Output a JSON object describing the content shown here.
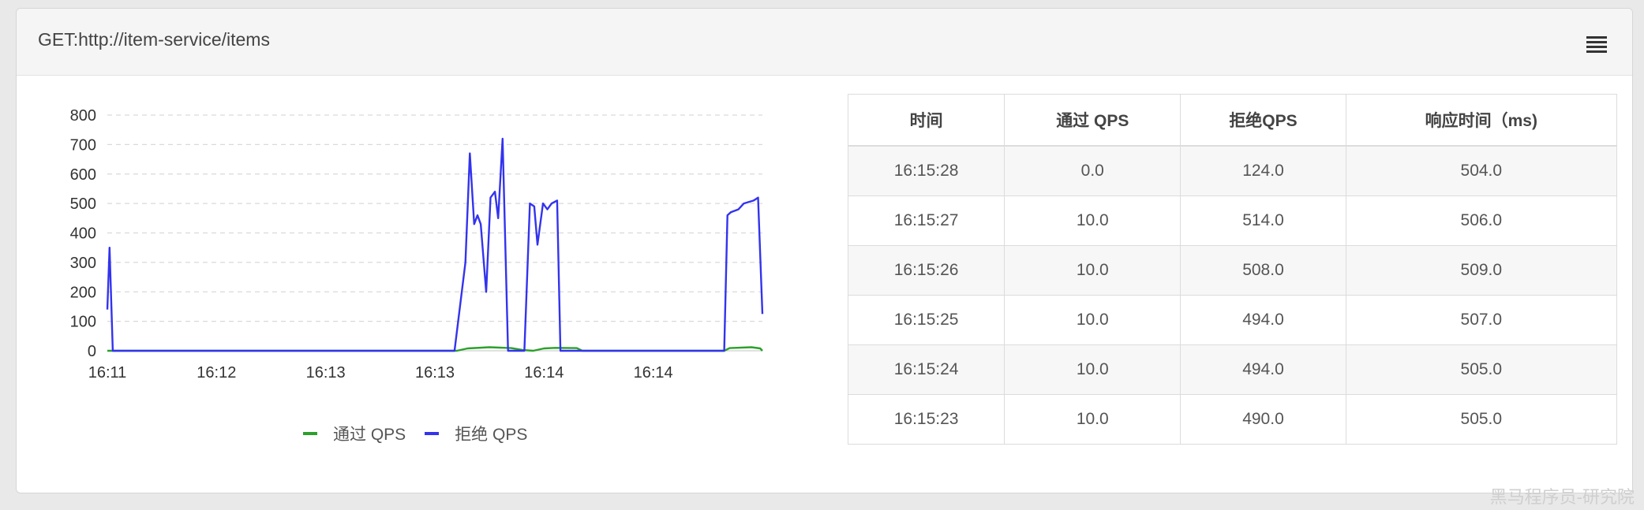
{
  "panel": {
    "title": "GET:http://item-service/items",
    "menu_icon": "hamburger-menu-icon"
  },
  "chart_data": {
    "type": "line",
    "x_tick_labels": [
      "16:11",
      "16:12",
      "16:13",
      "16:13",
      "16:14",
      "16:14"
    ],
    "y_ticks": [
      0,
      100,
      200,
      300,
      400,
      500,
      600,
      700,
      800
    ],
    "ylim": [
      0,
      800
    ],
    "grid": "horizontal-dashed",
    "legend_position": "bottom",
    "x_domain": [
      0,
      6
    ],
    "series": [
      {
        "name": "通过 QPS",
        "color": "#2ca02c",
        "points": [
          [
            0,
            0
          ],
          [
            3.2,
            0
          ],
          [
            3.3,
            8
          ],
          [
            3.5,
            12
          ],
          [
            3.7,
            9
          ],
          [
            3.8,
            3
          ],
          [
            3.9,
            0
          ],
          [
            4,
            8
          ],
          [
            4.1,
            10
          ],
          [
            4.3,
            9
          ],
          [
            4.35,
            0
          ],
          [
            5.65,
            0
          ],
          [
            5.7,
            9
          ],
          [
            5.9,
            12
          ],
          [
            5.98,
            8
          ],
          [
            6,
            0
          ]
        ]
      },
      {
        "name": "拒绝 QPS",
        "color": "#3333ee",
        "points": [
          [
            0,
            140
          ],
          [
            0.02,
            350
          ],
          [
            0.05,
            0
          ],
          [
            3.18,
            0
          ],
          [
            3.28,
            300
          ],
          [
            3.32,
            670
          ],
          [
            3.36,
            430
          ],
          [
            3.39,
            460
          ],
          [
            3.42,
            430
          ],
          [
            3.47,
            200
          ],
          [
            3.51,
            520
          ],
          [
            3.55,
            540
          ],
          [
            3.58,
            450
          ],
          [
            3.62,
            720
          ],
          [
            3.67,
            0
          ],
          [
            3.82,
            0
          ],
          [
            3.87,
            500
          ],
          [
            3.91,
            490
          ],
          [
            3.94,
            360
          ],
          [
            3.99,
            500
          ],
          [
            4.03,
            480
          ],
          [
            4.07,
            500
          ],
          [
            4.12,
            510
          ],
          [
            4.15,
            0
          ],
          [
            5.65,
            0
          ],
          [
            5.68,
            460
          ],
          [
            5.71,
            470
          ],
          [
            5.78,
            480
          ],
          [
            5.83,
            500
          ],
          [
            5.92,
            510
          ],
          [
            5.96,
            520
          ],
          [
            6,
            125
          ]
        ]
      }
    ]
  },
  "legend": [
    {
      "label": "通过 QPS",
      "color": "#2ca02c"
    },
    {
      "label": "拒绝 QPS",
      "color": "#3333ee"
    }
  ],
  "table": {
    "headers": [
      "时间",
      "通过 QPS",
      "拒绝QPS",
      "响应时间（ms)"
    ],
    "rows": [
      [
        "16:15:28",
        "0.0",
        "124.0",
        "504.0"
      ],
      [
        "16:15:27",
        "10.0",
        "514.0",
        "506.0"
      ],
      [
        "16:15:26",
        "10.0",
        "508.0",
        "509.0"
      ],
      [
        "16:15:25",
        "10.0",
        "494.0",
        "507.0"
      ],
      [
        "16:15:24",
        "10.0",
        "494.0",
        "505.0"
      ],
      [
        "16:15:23",
        "10.0",
        "490.0",
        "505.0"
      ]
    ]
  },
  "watermark": "黑马程序员-研究院"
}
